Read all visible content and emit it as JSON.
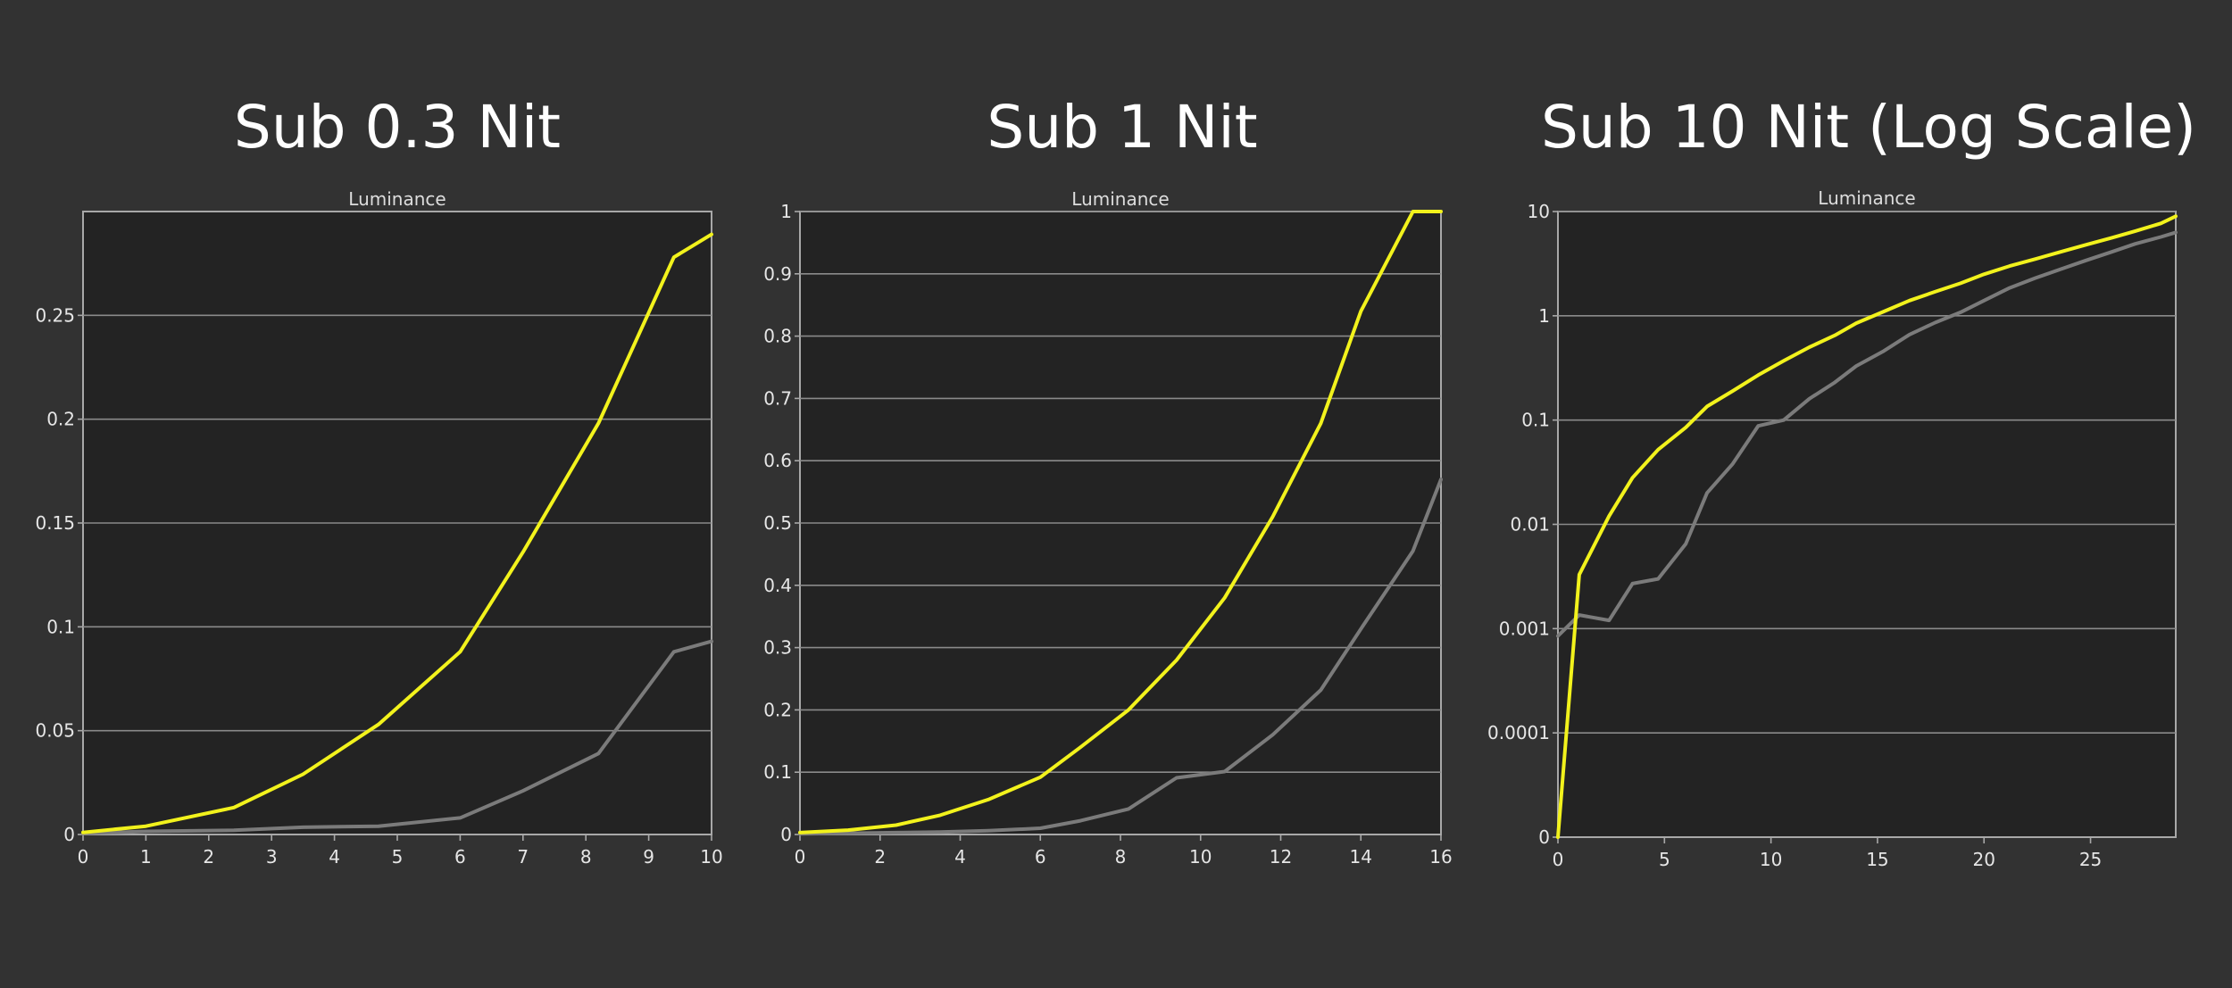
{
  "colors": {
    "background": "#323232",
    "plot_background": "#232323",
    "gridline": "#8a8a8a",
    "axis": "#a8a8a8",
    "series_yellow": "#f2f21c",
    "series_gray": "#7b7b7b"
  },
  "panels": [
    {
      "heading": "Sub 0.3 Nit"
    },
    {
      "heading": "Sub 1 Nit"
    },
    {
      "heading": "Sub 10 Nit (Log Scale)"
    }
  ],
  "chart_data": [
    {
      "type": "line",
      "title": "Luminance",
      "xlabel": "",
      "ylabel": "",
      "xlim": [
        0,
        10
      ],
      "ylim": [
        0,
        0.3
      ],
      "y_scale": "linear",
      "grid": true,
      "legend": "none",
      "x_ticks": [
        0,
        1,
        2,
        3,
        4,
        5,
        6,
        7,
        8,
        9,
        10
      ],
      "x_tick_labels": [
        "0",
        "1",
        "2",
        "3",
        "4",
        "5",
        "6",
        "7",
        "8",
        "9",
        "10"
      ],
      "y_ticks": [
        0,
        0.05,
        0.1,
        0.15,
        0.2,
        0.25
      ],
      "y_tick_labels": [
        "0",
        "0.05",
        "0.1",
        "0.15",
        "0.2",
        "0.25"
      ],
      "series": [
        {
          "color": "#f2f21c",
          "x": [
            0,
            1,
            2.4,
            3.5,
            4.7,
            6,
            7,
            8.2,
            9.4,
            10
          ],
          "y": [
            0.001,
            0.004,
            0.013,
            0.029,
            0.053,
            0.088,
            0.136,
            0.198,
            0.278,
            0.289
          ]
        },
        {
          "color": "#7b7b7b",
          "x": [
            0,
            1,
            2.4,
            3.5,
            4.7,
            6,
            7,
            8.2,
            9.4,
            10
          ],
          "y": [
            0.0005,
            0.0015,
            0.002,
            0.0035,
            0.004,
            0.008,
            0.021,
            0.039,
            0.088,
            0.093
          ]
        }
      ]
    },
    {
      "type": "line",
      "title": "Luminance",
      "xlabel": "",
      "ylabel": "",
      "xlim": [
        0,
        16
      ],
      "ylim": [
        0,
        1
      ],
      "y_scale": "linear",
      "grid": true,
      "legend": "none",
      "x_ticks": [
        0,
        2,
        4,
        6,
        8,
        10,
        12,
        14,
        16
      ],
      "x_tick_labels": [
        "0",
        "2",
        "4",
        "6",
        "8",
        "10",
        "12",
        "14",
        "16"
      ],
      "y_ticks": [
        0,
        0.1,
        0.2,
        0.3,
        0.4,
        0.5,
        0.6,
        0.7,
        0.8,
        0.9,
        1
      ],
      "y_tick_labels": [
        "0",
        "0.1",
        "0.2",
        "0.3",
        "0.4",
        "0.5",
        "0.6",
        "0.7",
        "0.8",
        "0.9",
        "1"
      ],
      "series": [
        {
          "color": "#f2f21c",
          "x": [
            0,
            1.2,
            2.4,
            3.5,
            4.7,
            6,
            7,
            8.2,
            9.4,
            10.6,
            11.8,
            13,
            14,
            15.3,
            16
          ],
          "y": [
            0.003,
            0.007,
            0.015,
            0.031,
            0.056,
            0.092,
            0.14,
            0.2,
            0.28,
            0.38,
            0.51,
            0.66,
            0.84,
            1,
            1
          ]
        },
        {
          "color": "#7b7b7b",
          "x": [
            0,
            1.2,
            2.4,
            3.5,
            4.7,
            6,
            7,
            8.2,
            9.4,
            10.6,
            11.8,
            13,
            14,
            15.3,
            16
          ],
          "y": [
            0.001,
            0.002,
            0.003,
            0.004,
            0.006,
            0.01,
            0.022,
            0.041,
            0.091,
            0.101,
            0.16,
            0.232,
            0.33,
            0.455,
            0.57
          ]
        }
      ]
    },
    {
      "type": "line",
      "title": "Luminance",
      "xlabel": "",
      "ylabel": "",
      "xlim": [
        0,
        29
      ],
      "y_scale": "log",
      "y_ticks": [
        0,
        0.0001,
        0.001,
        0.01,
        0.1,
        1,
        10
      ],
      "y_tick_labels": [
        "0",
        "0.0001",
        "0.001",
        "0.01",
        "0.1",
        "1",
        "10"
      ],
      "grid": true,
      "legend": "none",
      "x_ticks": [
        0,
        5,
        10,
        15,
        20,
        25
      ],
      "x_tick_labels": [
        "0",
        "5",
        "10",
        "15",
        "20",
        "25"
      ],
      "series": [
        {
          "color": "#f2f21c",
          "x": [
            0,
            1,
            2.4,
            3.5,
            4.7,
            6,
            7,
            8.2,
            9.4,
            10.6,
            11.8,
            13,
            14,
            15.3,
            16.5,
            17.7,
            18.9,
            20,
            21.2,
            22.4,
            23.6,
            24.8,
            26,
            27.1,
            28.3,
            29
          ],
          "y": [
            1e-05,
            0.0033,
            0.012,
            0.028,
            0.052,
            0.085,
            0.135,
            0.19,
            0.27,
            0.37,
            0.5,
            0.65,
            0.85,
            1.1,
            1.4,
            1.7,
            2.05,
            2.5,
            3,
            3.5,
            4.1,
            4.8,
            5.6,
            6.5,
            7.7,
            9
          ]
        },
        {
          "color": "#7b7b7b",
          "x": [
            0,
            1,
            2.4,
            3.5,
            4.7,
            6,
            7,
            8.2,
            9.4,
            10.6,
            11.8,
            13,
            14,
            15.3,
            16.5,
            17.7,
            18.9,
            20,
            21.2,
            22.4,
            23.6,
            24.8,
            26,
            27.1,
            28.3,
            29
          ],
          "y": [
            0.00085,
            0.00135,
            0.0012,
            0.0027,
            0.003,
            0.0065,
            0.02,
            0.038,
            0.088,
            0.1,
            0.16,
            0.23,
            0.33,
            0.46,
            0.66,
            0.86,
            1.08,
            1.4,
            1.85,
            2.3,
            2.8,
            3.4,
            4.1,
            4.9,
            5.7,
            6.3
          ]
        }
      ]
    }
  ]
}
